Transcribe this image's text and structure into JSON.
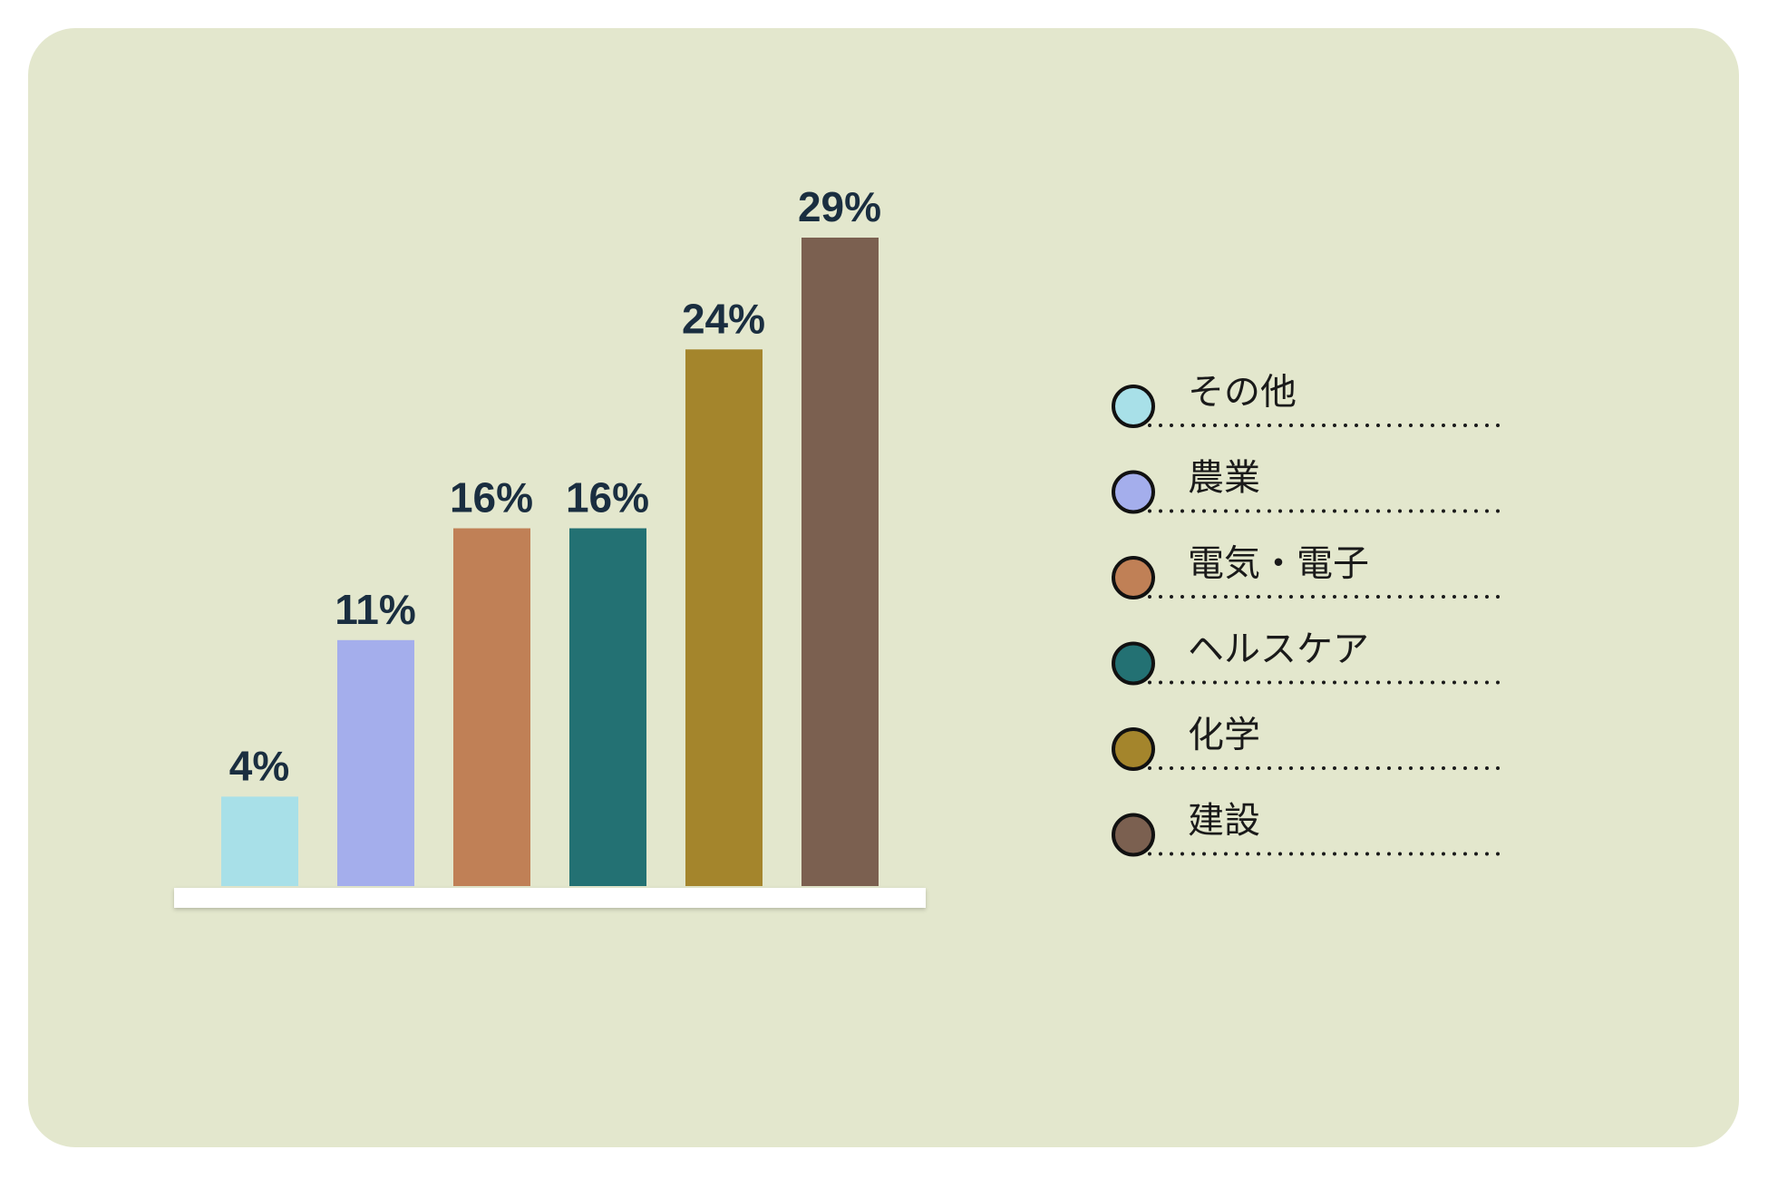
{
  "chart_data": {
    "type": "bar",
    "categories": [
      "その他",
      "農業",
      "電気・電子",
      "ヘルスケア",
      "化学",
      "建設"
    ],
    "values": [
      4,
      11,
      16,
      16,
      24,
      29
    ],
    "value_labels": [
      "4%",
      "11%",
      "16%",
      "16%",
      "24%",
      "29%"
    ],
    "colors": [
      "#a8e0e8",
      "#a4aeec",
      "#c08056",
      "#237173",
      "#a4852c",
      "#7b6050"
    ],
    "legend": "right"
  }
}
